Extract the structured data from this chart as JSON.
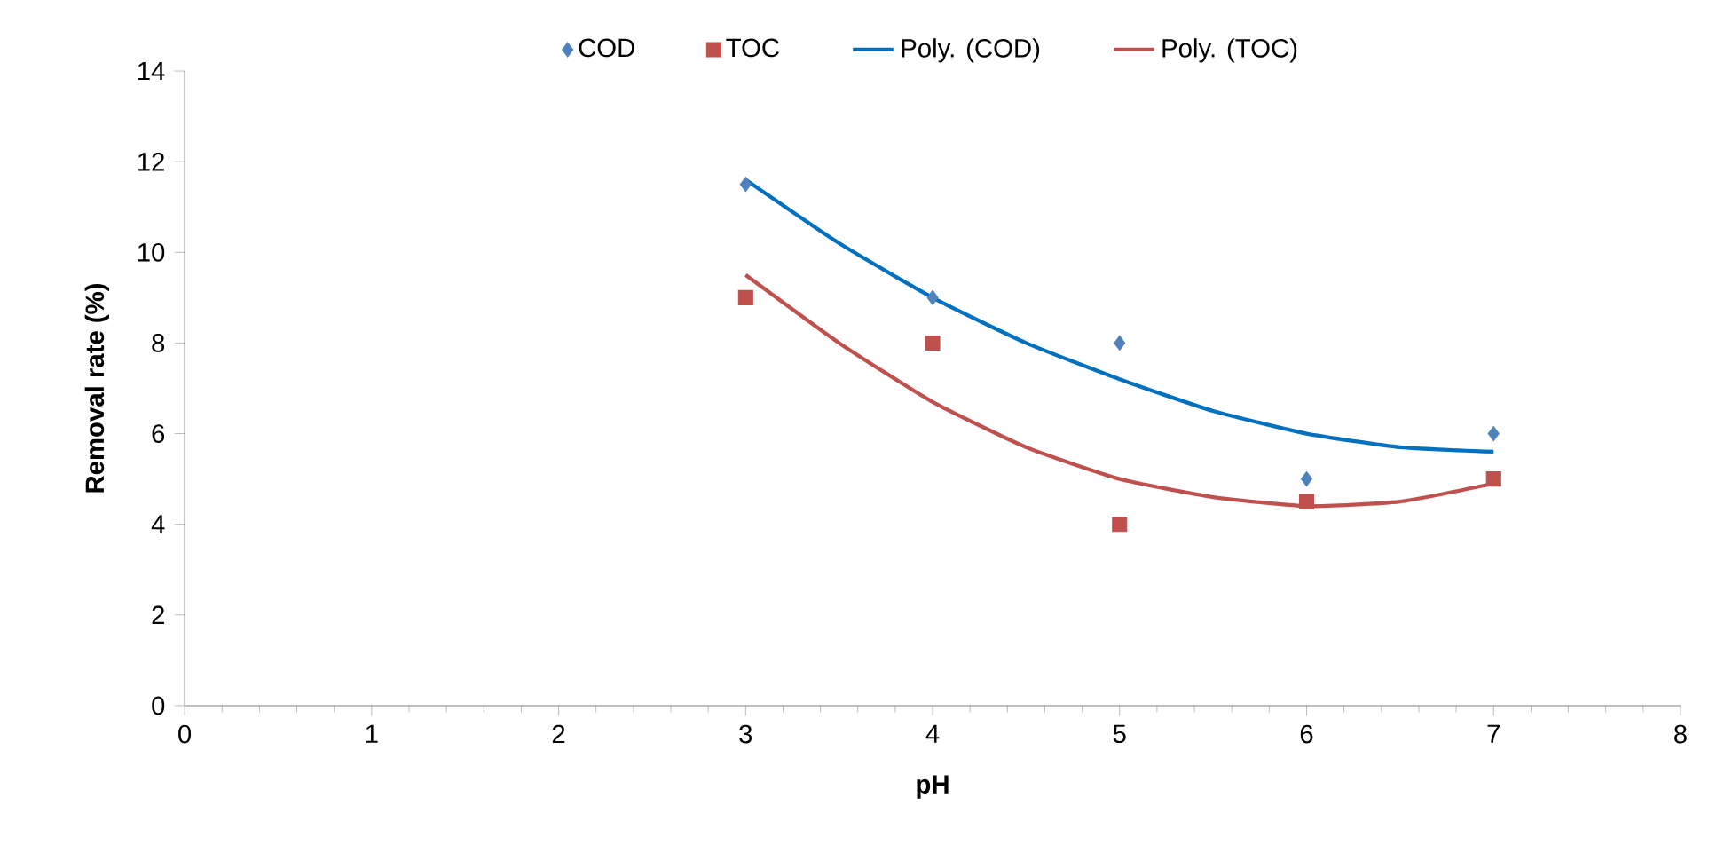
{
  "chart_data": {
    "type": "scatter",
    "xlabel": "pH",
    "ylabel": "Removal rate (%)",
    "xlim": [
      0,
      8
    ],
    "xticks": [
      0,
      1,
      2,
      3,
      4,
      5,
      6,
      7,
      8
    ],
    "ylim": [
      0,
      14
    ],
    "yticks": [
      0,
      2,
      4,
      6,
      8,
      10,
      12,
      14
    ],
    "grid": false,
    "legend": "top",
    "series": [
      {
        "name": "COD",
        "marker": "diamond",
        "color": "#4f81bd",
        "x": [
          3,
          4,
          5,
          6,
          7
        ],
        "values": [
          11.5,
          9,
          8,
          5,
          6
        ]
      },
      {
        "name": "TOC",
        "marker": "square",
        "color": "#c0504d",
        "x": [
          3,
          4,
          5,
          6,
          7
        ],
        "values": [
          9,
          8,
          4,
          4.5,
          5
        ]
      },
      {
        "name": "Poly. (COD)",
        "type": "line",
        "marker": "none",
        "color": "#0070c0",
        "x": [
          3,
          3.5,
          4,
          4.5,
          5,
          5.5,
          6,
          6.5,
          7
        ],
        "values": [
          11.6,
          10.2,
          9.0,
          8.0,
          7.2,
          6.5,
          6.0,
          5.7,
          5.6
        ]
      },
      {
        "name": "Poly. (TOC)",
        "type": "line",
        "marker": "none",
        "color": "#c0504d",
        "x": [
          3,
          3.5,
          4,
          4.5,
          5,
          5.5,
          6,
          6.5,
          7
        ],
        "values": [
          9.5,
          8.0,
          6.7,
          5.7,
          5.0,
          4.6,
          4.4,
          4.5,
          4.9
        ]
      }
    ]
  }
}
